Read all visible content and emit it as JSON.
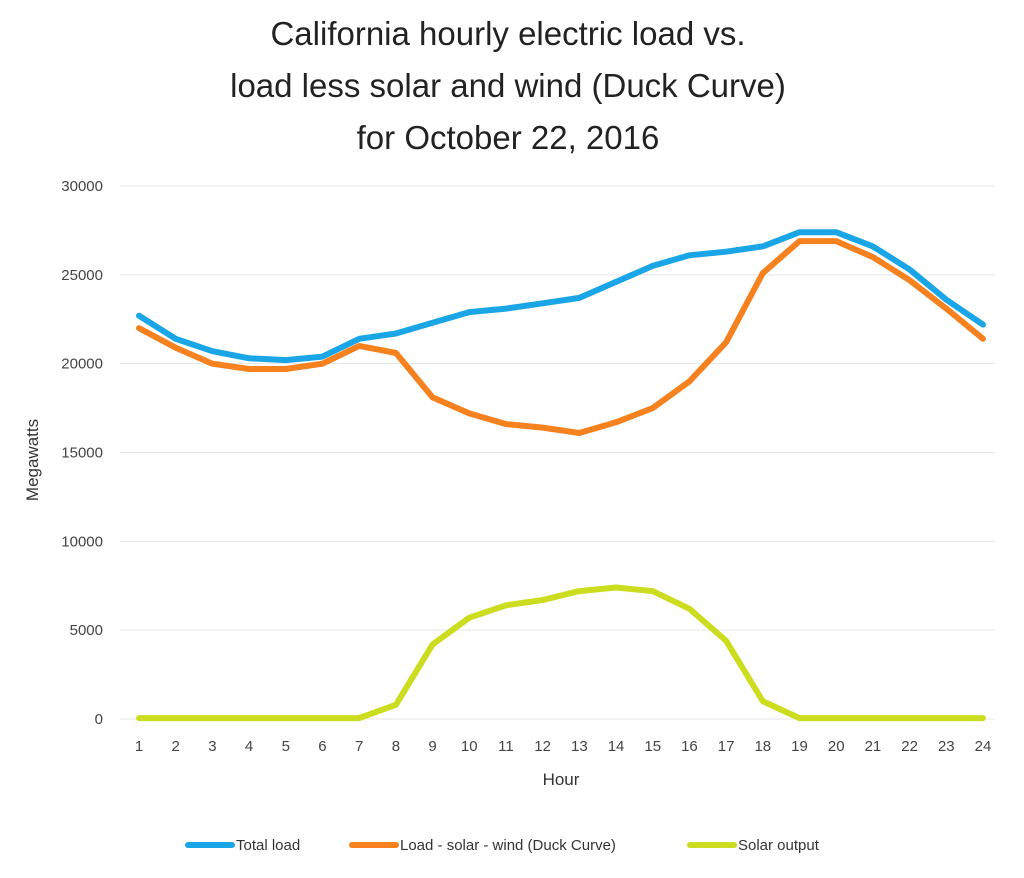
{
  "chart_data": {
    "type": "line",
    "title_lines": [
      "California hourly electric load vs.",
      "load less solar and wind (Duck Curve)",
      "for October 22, 2016"
    ],
    "xlabel": "Hour",
    "ylabel": "Megawatts",
    "ylim": [
      0,
      30000
    ],
    "yticks": [
      0,
      5000,
      10000,
      15000,
      20000,
      25000,
      30000
    ],
    "categories": [
      "1",
      "2",
      "3",
      "4",
      "5",
      "6",
      "7",
      "8",
      "9",
      "10",
      "11",
      "12",
      "13",
      "14",
      "15",
      "16",
      "17",
      "18",
      "19",
      "20",
      "21",
      "22",
      "23",
      "24"
    ],
    "grid": "horizontal",
    "legend_position": "bottom",
    "series": [
      {
        "name": "Total load",
        "color": "#1aa6e6",
        "values": [
          22700,
          21400,
          20700,
          20300,
          20200,
          20400,
          21400,
          21700,
          22300,
          22900,
          23100,
          23400,
          23700,
          24600,
          25500,
          26100,
          26300,
          26600,
          27400,
          27400,
          26600,
          25300,
          23600,
          22200
        ]
      },
      {
        "name": "Load - solar - wind (Duck Curve)",
        "color": "#f5821f",
        "values": [
          22000,
          20900,
          20000,
          19700,
          19700,
          20000,
          21000,
          20600,
          18100,
          17200,
          16600,
          16400,
          16100,
          16700,
          17500,
          19000,
          21200,
          25100,
          26900,
          26900,
          26000,
          24700,
          23100,
          21400
        ]
      },
      {
        "name": "Solar output",
        "color": "#cbdd1e",
        "values": [
          50,
          50,
          50,
          50,
          50,
          50,
          50,
          800,
          4200,
          5700,
          6400,
          6700,
          7200,
          7400,
          7200,
          6200,
          4400,
          1000,
          50,
          50,
          50,
          50,
          50,
          50
        ]
      }
    ]
  }
}
